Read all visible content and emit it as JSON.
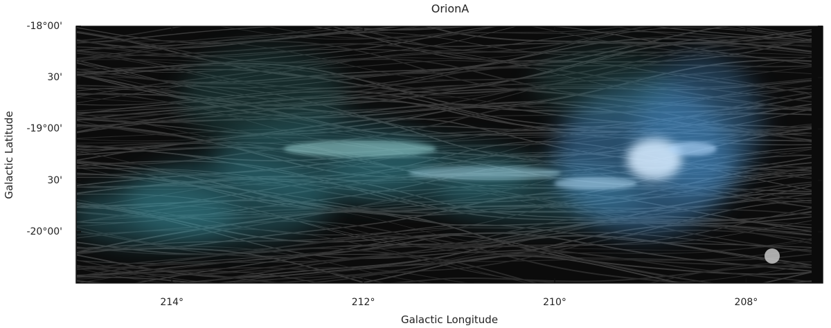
{
  "map": {
    "title": "OrionA",
    "xlabel": "Galactic Longitude",
    "ylabel": "Galactic Latitude",
    "x_ticks": [
      "214°",
      "212°",
      "210°",
      "208°"
    ],
    "x_tick_values_deg": [
      214,
      212,
      210,
      208
    ],
    "y_ticks": [
      "-18°00'",
      "30'",
      "-19°00'",
      "30'",
      "-20°00'"
    ],
    "y_tick_values_deg": [
      -18.0,
      -18.5,
      -19.0,
      -19.5,
      -20.0
    ],
    "x_range_deg": [
      215.0,
      207.2
    ],
    "y_range_deg": [
      -18.0,
      -20.5
    ],
    "background_color": "#0b0b0b",
    "emission_colors": [
      "#3fa0b0",
      "#4f9fe0",
      "#2d6b6b"
    ],
    "beam_color": "#c8c8c8"
  }
}
